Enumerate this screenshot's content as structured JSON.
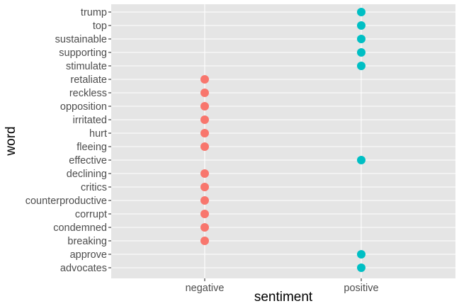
{
  "chart_data": {
    "type": "scatter",
    "xlabel": "sentiment",
    "ylabel": "word",
    "categories": [
      "negative",
      "positive"
    ],
    "words": [
      "trump",
      "top",
      "sustainable",
      "supporting",
      "stimulate",
      "retaliate",
      "reckless",
      "opposition",
      "irritated",
      "hurt",
      "fleeing",
      "effective",
      "declining",
      "critics",
      "counterproductive",
      "corrupt",
      "condemned",
      "breaking",
      "approve",
      "advocates"
    ],
    "points": [
      {
        "word": "trump",
        "sentiment": "positive"
      },
      {
        "word": "top",
        "sentiment": "positive"
      },
      {
        "word": "sustainable",
        "sentiment": "positive"
      },
      {
        "word": "supporting",
        "sentiment": "positive"
      },
      {
        "word": "stimulate",
        "sentiment": "positive"
      },
      {
        "word": "retaliate",
        "sentiment": "negative"
      },
      {
        "word": "reckless",
        "sentiment": "negative"
      },
      {
        "word": "opposition",
        "sentiment": "negative"
      },
      {
        "word": "irritated",
        "sentiment": "negative"
      },
      {
        "word": "hurt",
        "sentiment": "negative"
      },
      {
        "word": "fleeing",
        "sentiment": "negative"
      },
      {
        "word": "effective",
        "sentiment": "positive"
      },
      {
        "word": "declining",
        "sentiment": "negative"
      },
      {
        "word": "critics",
        "sentiment": "negative"
      },
      {
        "word": "counterproductive",
        "sentiment": "negative"
      },
      {
        "word": "corrupt",
        "sentiment": "negative"
      },
      {
        "word": "condemned",
        "sentiment": "negative"
      },
      {
        "word": "breaking",
        "sentiment": "negative"
      },
      {
        "word": "approve",
        "sentiment": "positive"
      },
      {
        "word": "advocates",
        "sentiment": "positive"
      }
    ],
    "colors": {
      "negative": "#F8766D",
      "positive": "#00BFC4",
      "panel_background": "#E5E5E5",
      "grid": "#FFFFFF"
    },
    "grid": true,
    "legend": "none"
  }
}
